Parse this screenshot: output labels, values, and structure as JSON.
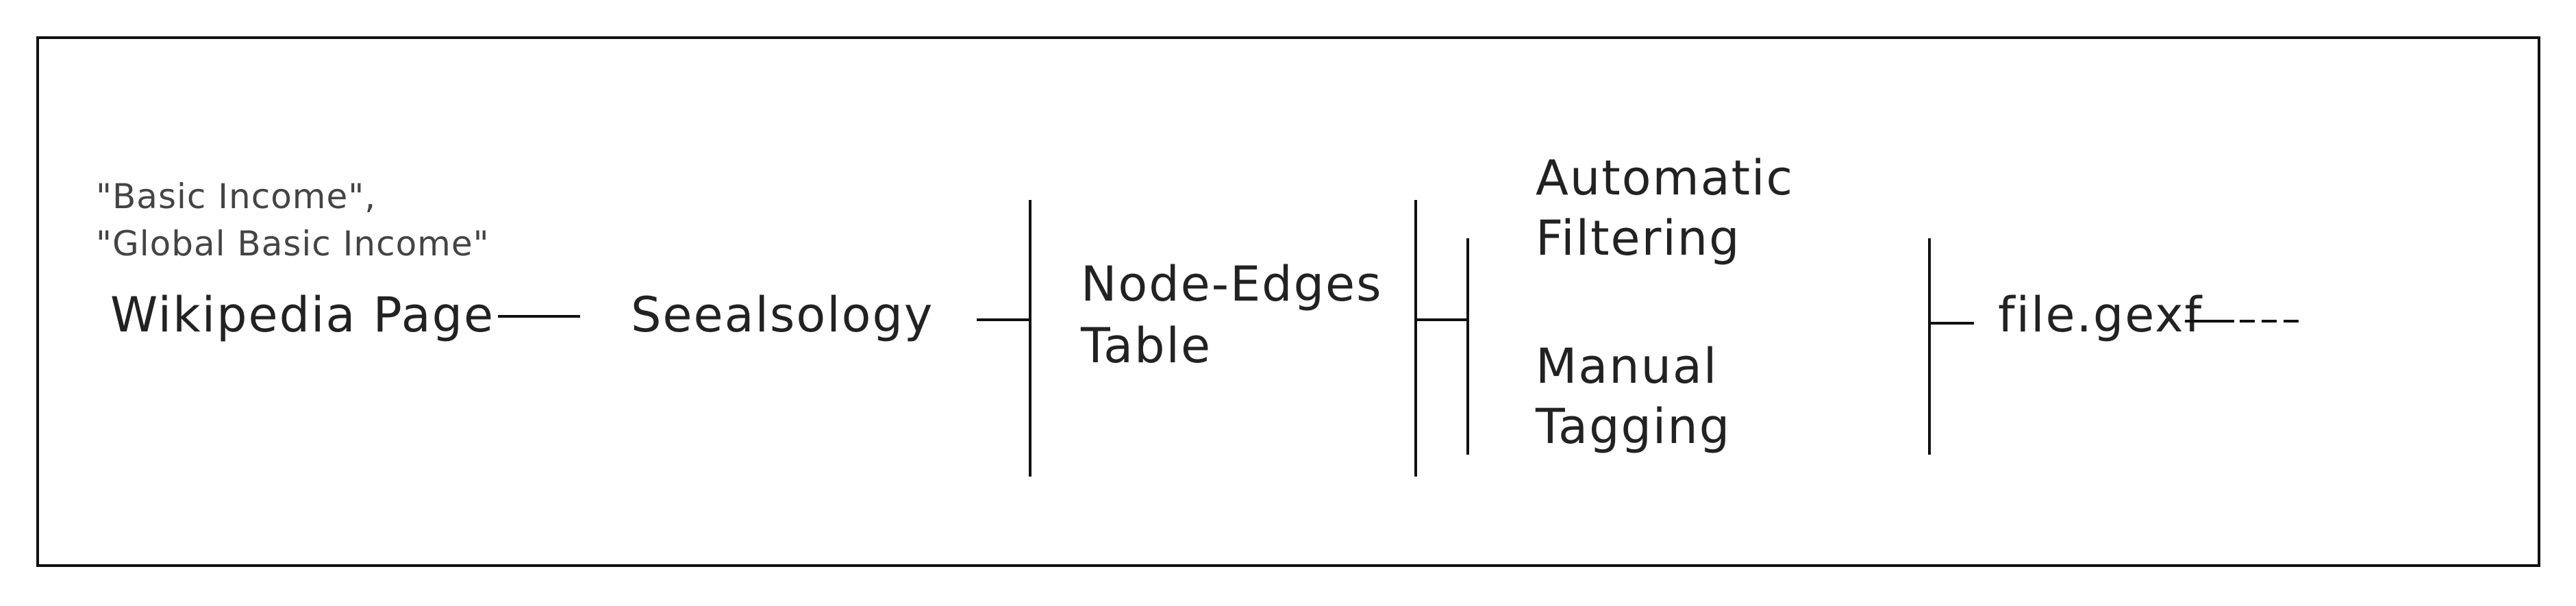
{
  "diagram": {
    "query_lines": [
      "\"Basic Income\",",
      "\"Global Basic Income\""
    ],
    "wikipedia": "Wikipedia Page",
    "seealsology": "Seealsology",
    "table_lines": [
      "Node-Edges",
      "Table"
    ],
    "automatic_lines": [
      "Automatic",
      "Filtering"
    ],
    "manual_lines": [
      "Manual",
      "Tagging"
    ],
    "output": "file.gexf"
  }
}
